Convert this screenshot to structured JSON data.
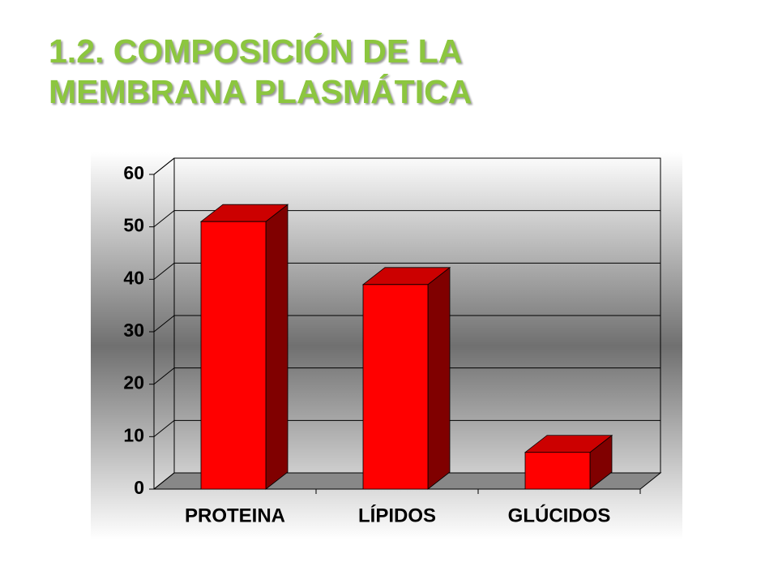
{
  "chart_data": {
    "type": "bar3d",
    "title": "1.2. COMPOSICIÓN DE LA MEMBRANA PLASMÁTICA",
    "categories": [
      "PROTEINA",
      "LÍPIDOS",
      "GLÚCIDOS"
    ],
    "values": [
      51,
      39,
      7
    ],
    "color": "#ff0000",
    "ylim": [
      0,
      60
    ],
    "yticks": [
      0,
      10,
      20,
      30,
      40,
      50,
      60
    ],
    "grid": true
  }
}
